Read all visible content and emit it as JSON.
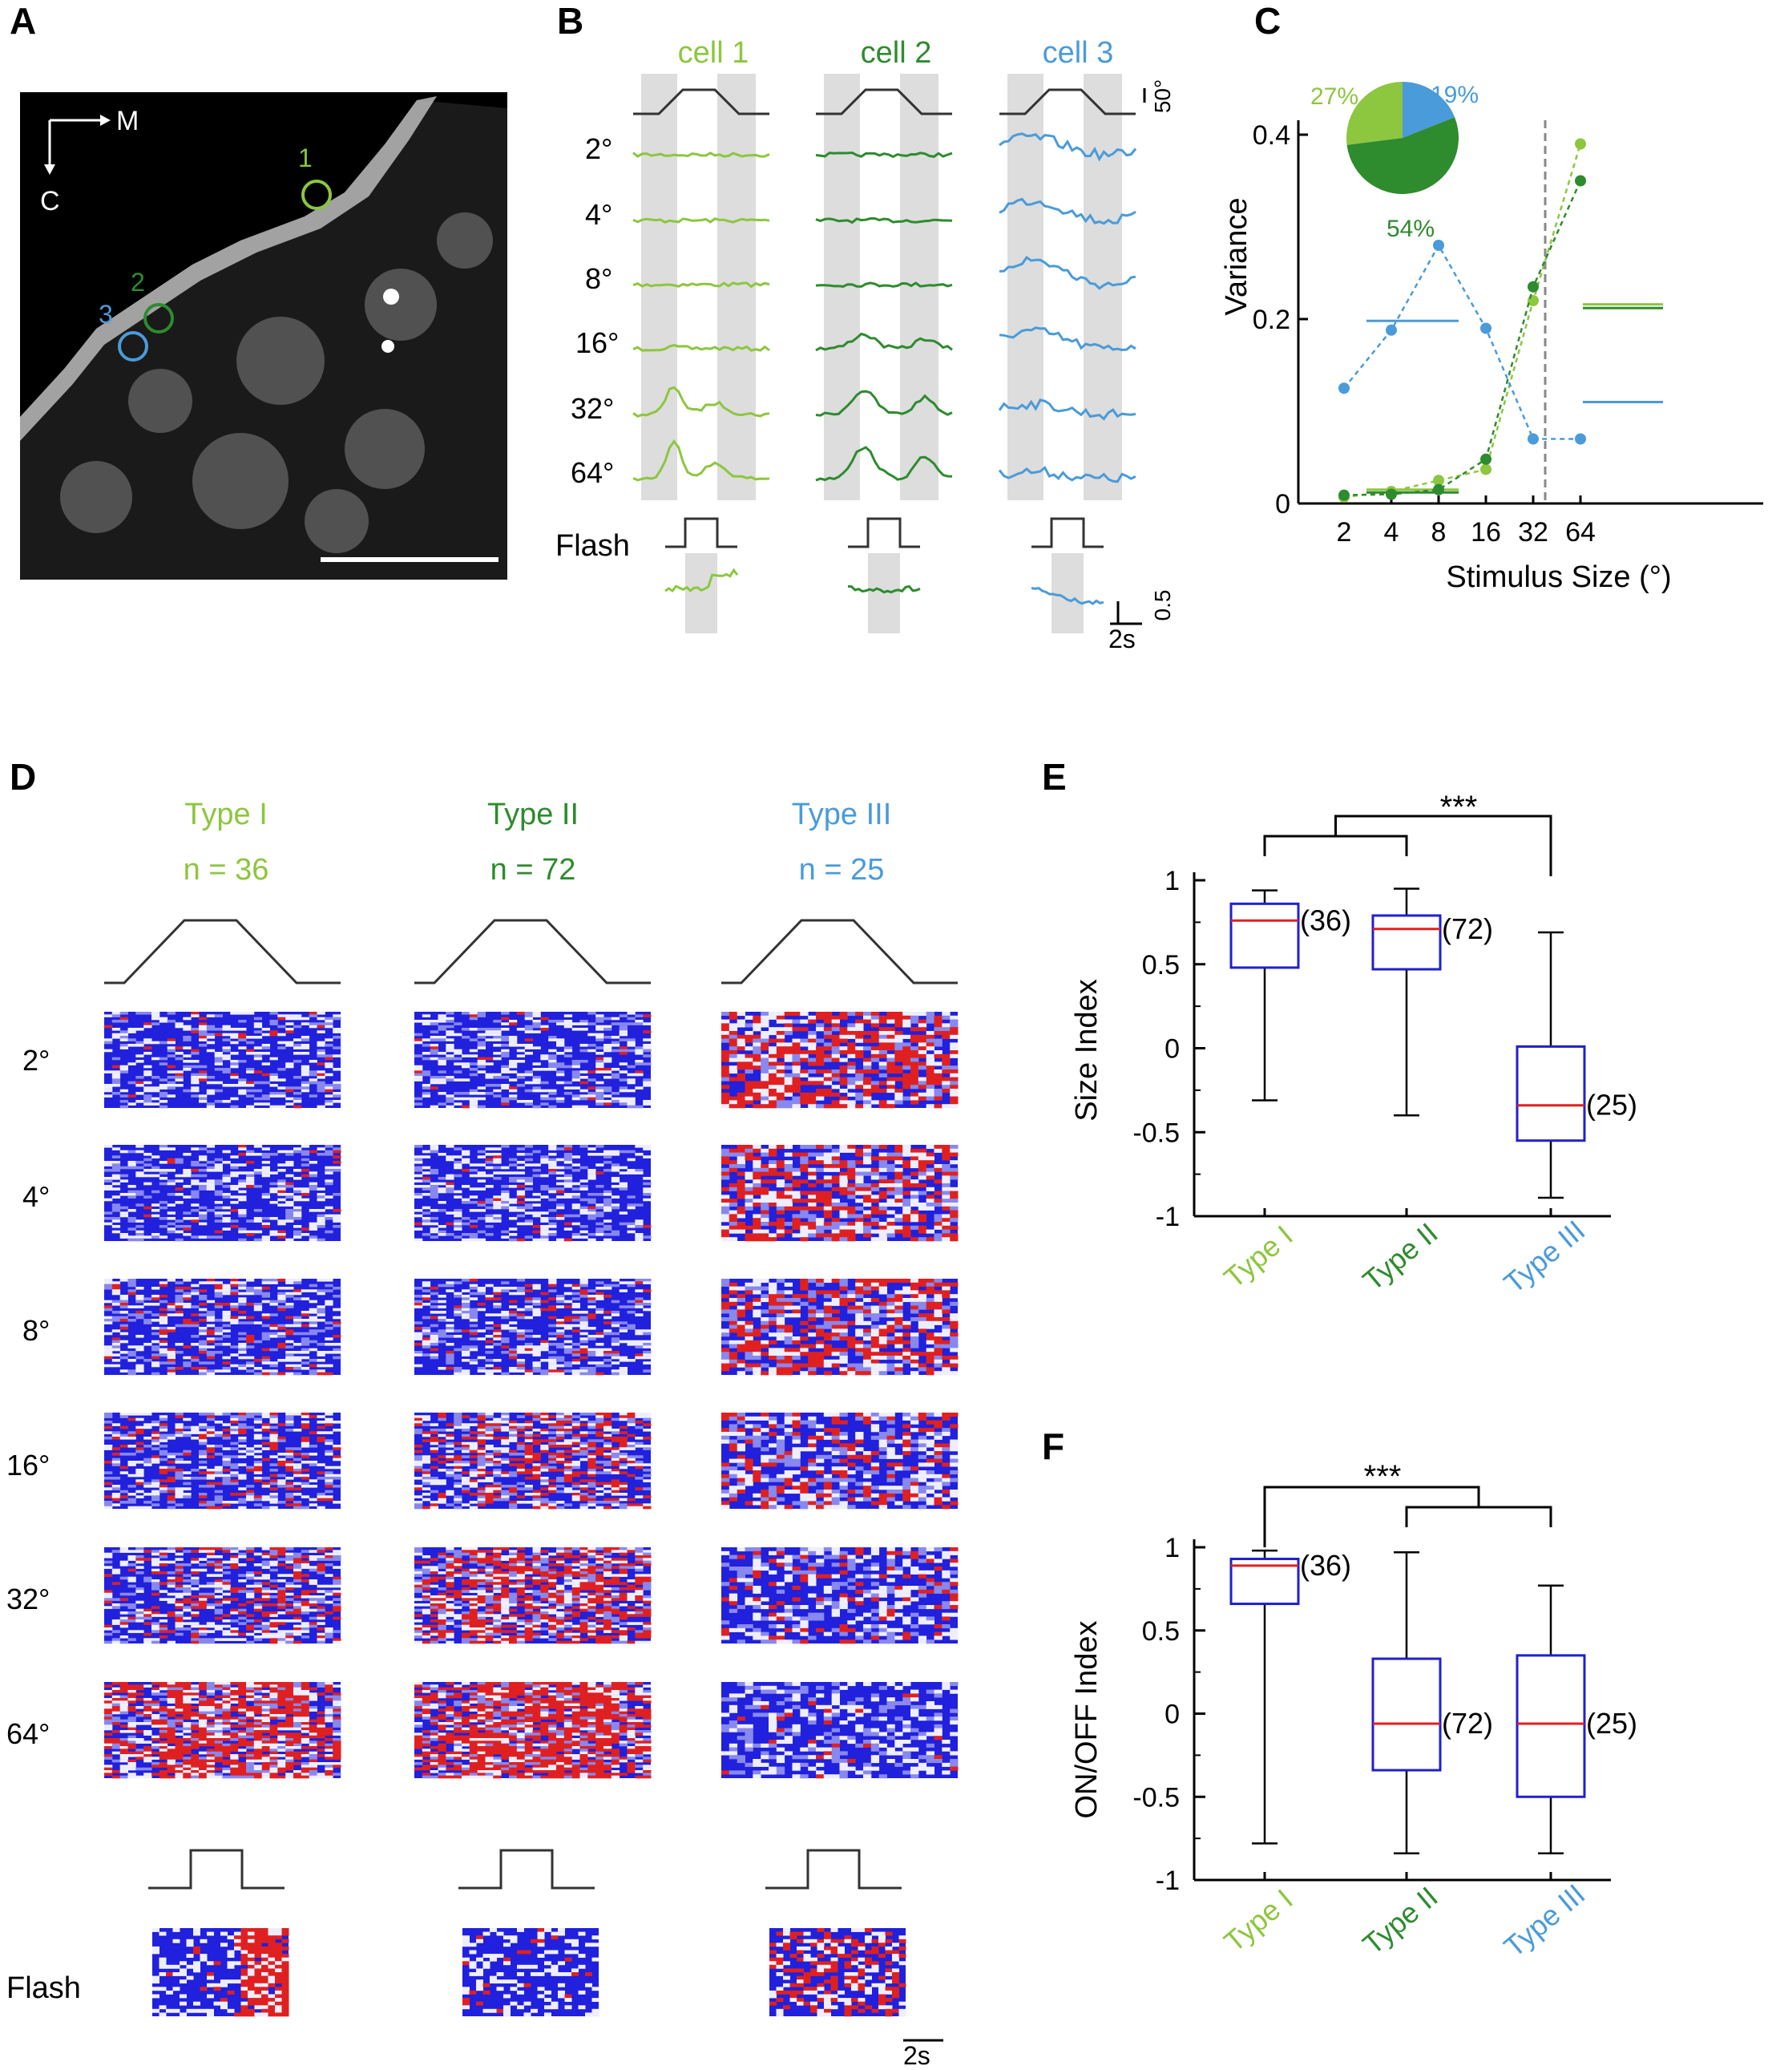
{
  "colors": {
    "type1": "#8dc63f",
    "type2": "#2e8b2e",
    "type3": "#4a9bd9",
    "box": "#2020cc",
    "median": "#e02020",
    "grey": "#dddddd",
    "stim": "#333333"
  },
  "panels": {
    "A": {
      "letter": "A",
      "axis_m": "M",
      "axis_c": "C",
      "cell_labels": [
        "1",
        "2",
        "3"
      ]
    },
    "B": {
      "letter": "B",
      "cell_titles": [
        "cell 1",
        "cell 2",
        "cell 3"
      ],
      "sizes": [
        "2°",
        "4°",
        "8°",
        "16°",
        "32°",
        "64°"
      ],
      "flash_label": "Flash",
      "scale_deg": "50°",
      "scale_amp": "0.5",
      "scale_time": "2s"
    },
    "C": {
      "letter": "C",
      "pie_labels": [
        "27%",
        "19%",
        "54%"
      ]
    },
    "D": {
      "letter": "D",
      "types": [
        {
          "name": "Type I",
          "n": "n = 36"
        },
        {
          "name": "Type II",
          "n": "n = 72"
        },
        {
          "name": "Type III",
          "n": "n = 25"
        }
      ],
      "sizes": [
        "2°",
        "4°",
        "8°",
        "16°",
        "32°",
        "64°"
      ],
      "flash_label": "Flash",
      "scale_time": "2s"
    },
    "E": {
      "letter": "E",
      "sig": "***"
    },
    "F": {
      "letter": "F",
      "sig": "***"
    }
  },
  "chart_data": [
    {
      "type": "line",
      "panel": "C",
      "xlabel": "Stimulus Size (°)",
      "ylabel": "Variance",
      "categories": [
        "2",
        "4",
        "8",
        "16",
        "32",
        "64"
      ],
      "ylim": [
        0,
        0.4
      ],
      "yticks": [
        "0",
        "0.2",
        "0.4"
      ],
      "series": [
        {
          "values": [
            0.007,
            0.013,
            0.025,
            0.037,
            0.22,
            0.39
          ],
          "mean_small": 0.015,
          "mean_large": 0.216
        },
        {
          "values": [
            0.009,
            0.01,
            0.015,
            0.048,
            0.235,
            0.35
          ],
          "mean_small": 0.012,
          "mean_large": 0.212
        },
        {
          "values": [
            0.125,
            0.188,
            0.28,
            0.19,
            0.07,
            0.07
          ],
          "mean_small": 0.198,
          "mean_large": 0.11
        }
      ],
      "pie": [
        27,
        19,
        54
      ]
    },
    {
      "type": "box",
      "panel": "E",
      "ylabel": "Size Index",
      "categories": [
        "Type I",
        "Type II",
        "Type III"
      ],
      "ylim": [
        -1,
        1
      ],
      "yticks": [
        "-1",
        "-0.5",
        "0",
        "0.5",
        "1"
      ],
      "boxes": [
        {
          "min": -0.31,
          "q1": 0.48,
          "median": 0.76,
          "q3": 0.86,
          "max": 0.94,
          "n": "(36)"
        },
        {
          "min": -0.4,
          "q1": 0.47,
          "median": 0.71,
          "q3": 0.79,
          "max": 0.95,
          "n": "(72)"
        },
        {
          "min": -0.89,
          "q1": -0.55,
          "median": -0.34,
          "q3": 0.01,
          "max": 0.69,
          "n": "(25)"
        }
      ]
    },
    {
      "type": "box",
      "panel": "F",
      "ylabel": "ON/OFF Index",
      "categories": [
        "Type I",
        "Type II",
        "Type III"
      ],
      "ylim": [
        -1,
        1
      ],
      "yticks": [
        "-1",
        "-0.5",
        "0",
        "0.5",
        "1"
      ],
      "boxes": [
        {
          "min": -0.78,
          "q1": 0.66,
          "median": 0.89,
          "q3": 0.93,
          "max": 0.98,
          "n": "(36)"
        },
        {
          "min": -0.84,
          "q1": -0.34,
          "median": -0.06,
          "q3": 0.33,
          "max": 0.97,
          "n": "(72)"
        },
        {
          "min": -0.84,
          "q1": -0.5,
          "median": -0.06,
          "q3": 0.35,
          "max": 0.77,
          "n": "(25)"
        }
      ]
    }
  ]
}
